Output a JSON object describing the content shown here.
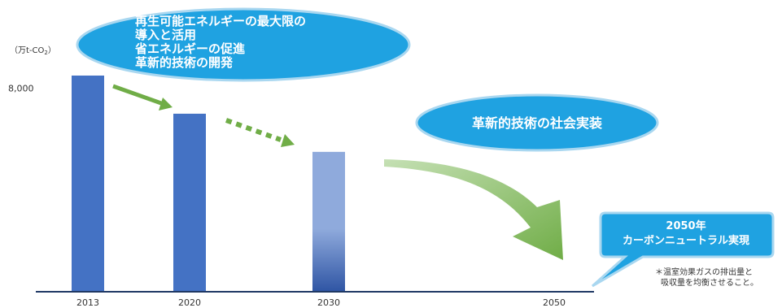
{
  "chart_data": {
    "type": "bar",
    "unit_label": "（万t-CO",
    "unit_sub": "2",
    "unit_close": "）",
    "y_ticks": [
      {
        "value": 8000,
        "label": "8,000"
      }
    ],
    "ylim": [
      0,
      10800
    ],
    "categories": [
      "2013",
      "2020",
      "2030",
      "2050"
    ],
    "values": [
      8500,
      7000,
      5500,
      0
    ],
    "title": "",
    "xlabel": "",
    "ylabel": ""
  },
  "bubbles": {
    "measures": {
      "lines": [
        "再生可能エネルギーの最大限の",
        "導入と活用",
        "省エネルギーの促進",
        "革新的技術の開発"
      ]
    },
    "innovation": {
      "text": "革新的技術の社会実装"
    },
    "goal": {
      "lines": [
        "2050年",
        "カーボンニュートラル実現"
      ]
    }
  },
  "footnote": {
    "lines": [
      "＊温室効果ガスの排出量と",
      "吸収量を均衡させること。"
    ]
  },
  "colors": {
    "bar_solid": "#4472c4",
    "bar_light": "#8faadc",
    "bar_dark": "#2f55a4",
    "arrow_green": "#70ad47",
    "bubble_blue": "#1fa2e1",
    "bubble_border": "#a9d7f0",
    "axis": "#1f3864"
  }
}
